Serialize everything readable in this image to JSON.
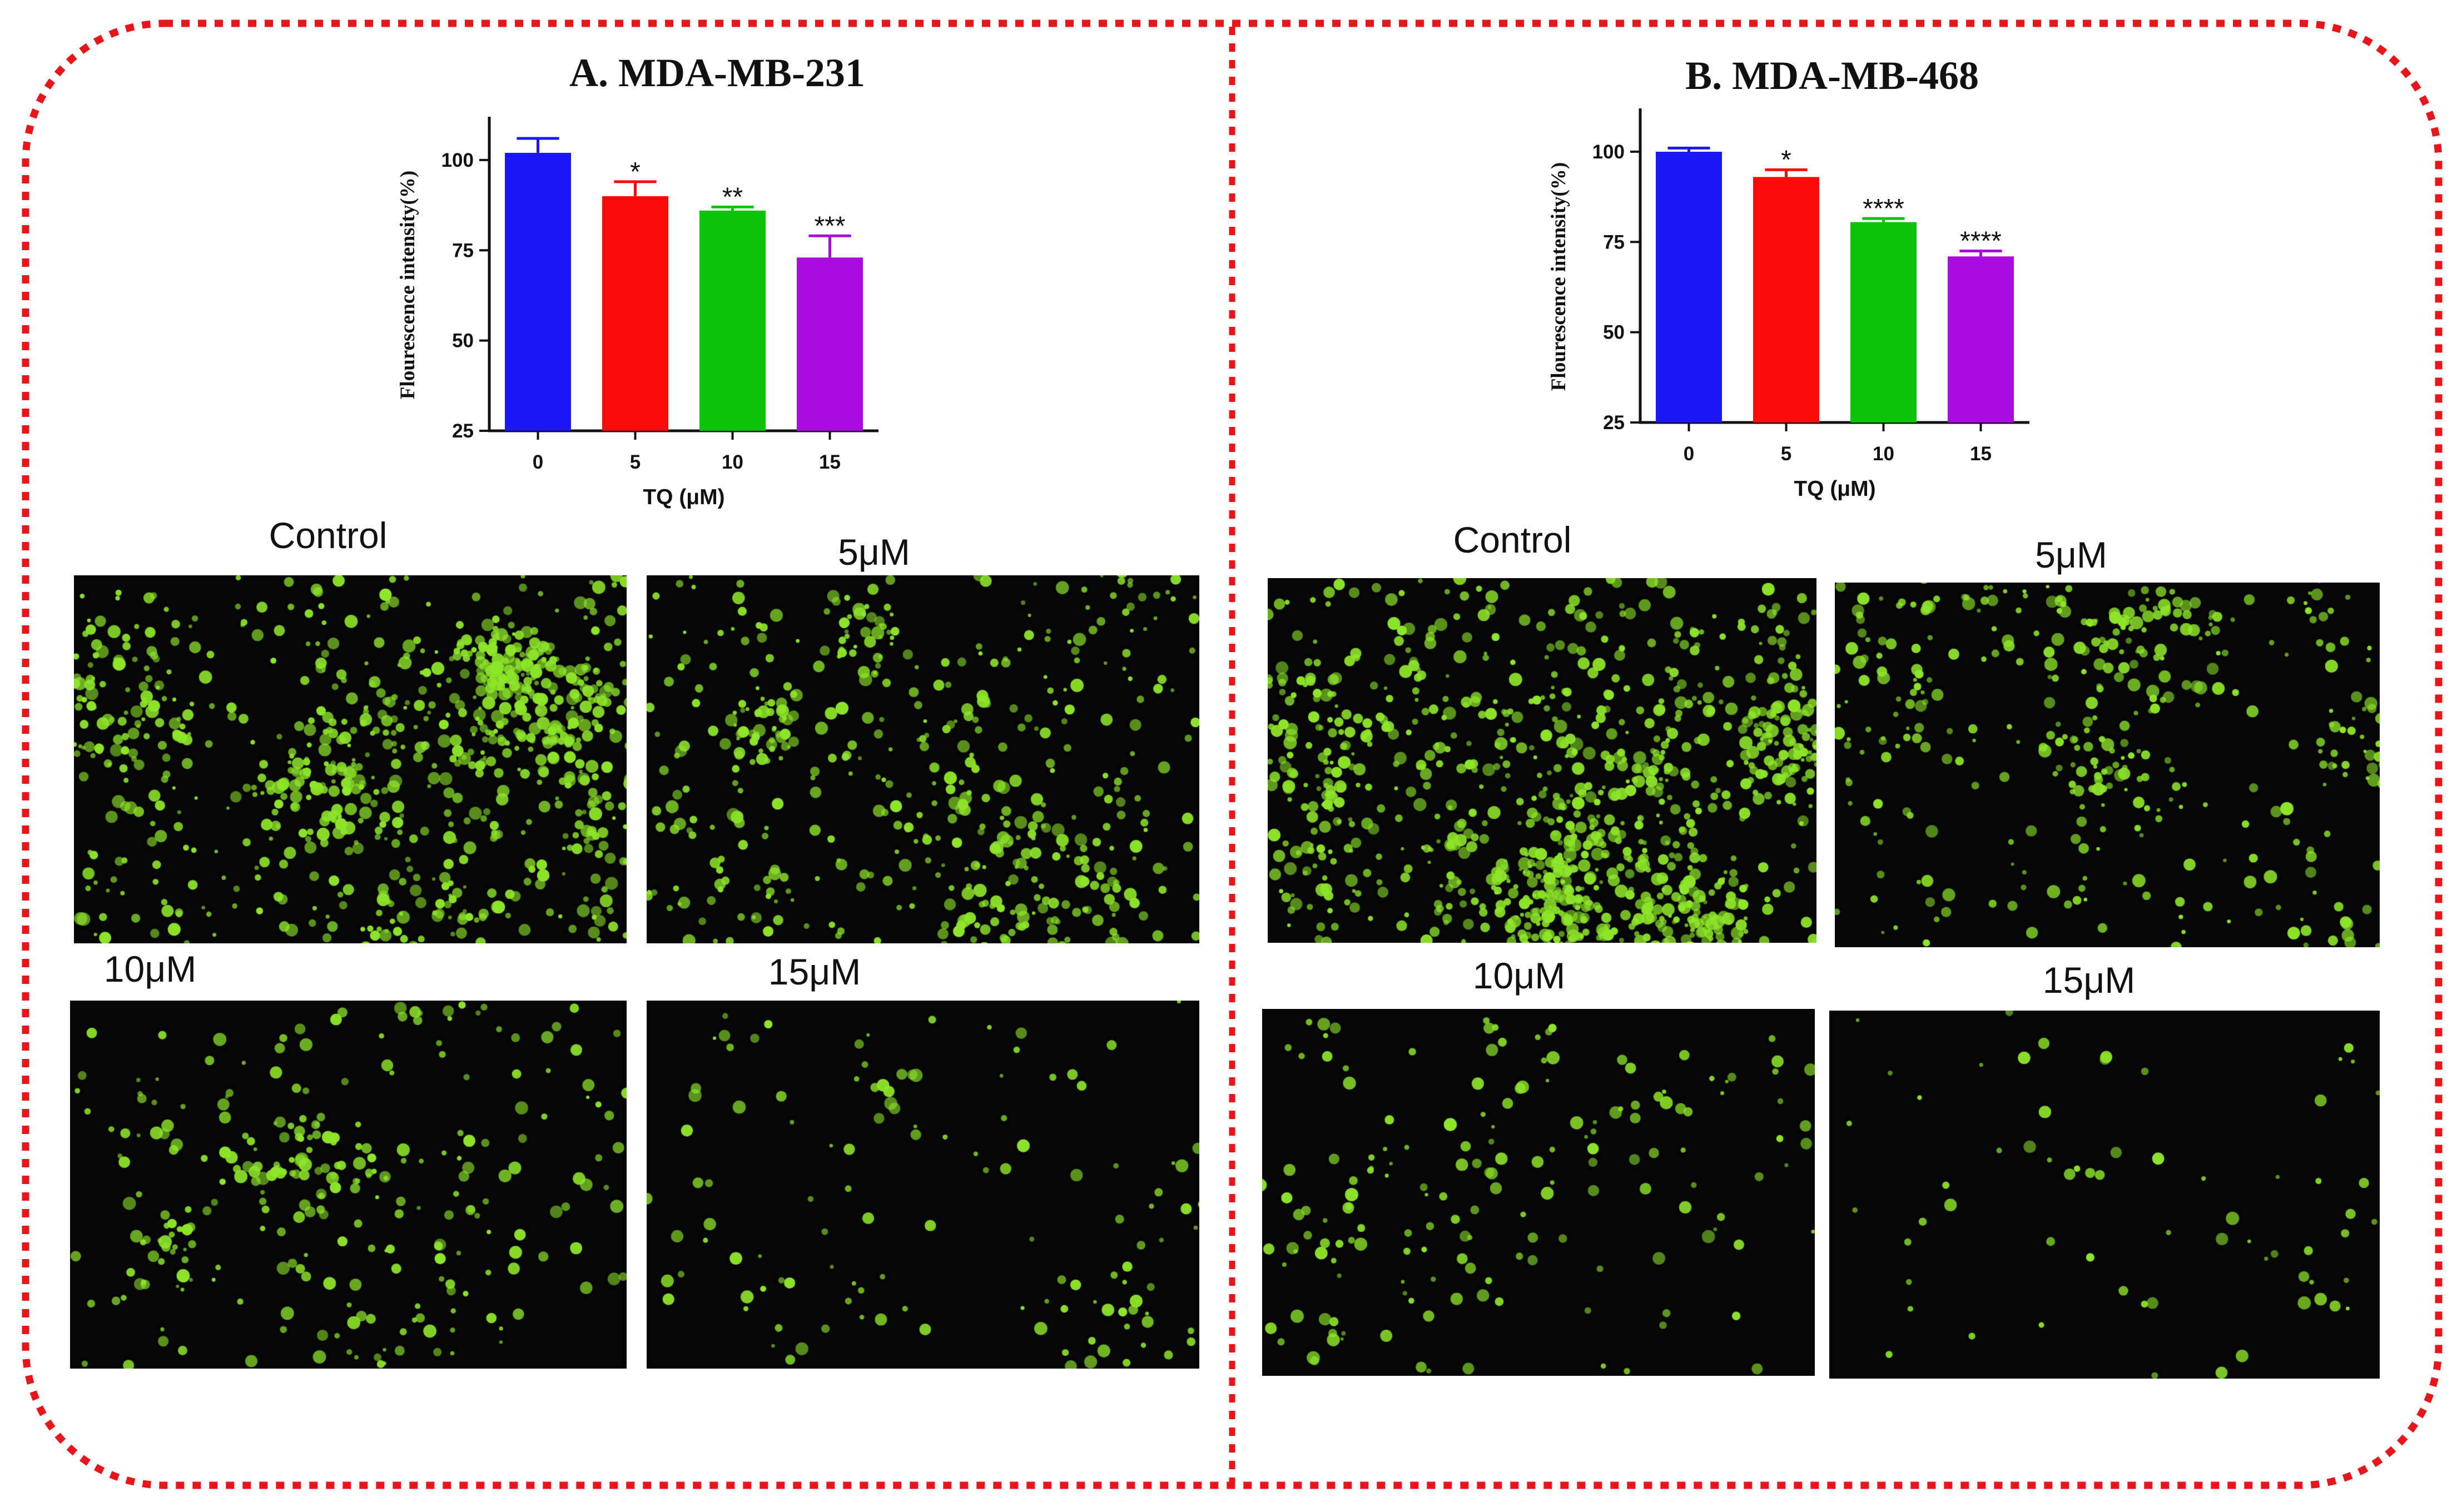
{
  "colors": {
    "border": "#e8161b",
    "bar_colors": [
      "#1b17f5",
      "#fb0a0a",
      "#0bc40b",
      "#a80ddd"
    ],
    "cell_fluorescence": "#8ee52a",
    "micrograph_background": "#050505"
  },
  "panels": [
    {
      "title": "A. MDA-MB-231",
      "micrographs": [
        {
          "label": "Control",
          "cell_count": 900
        },
        {
          "label": "5μM",
          "cell_count": 560
        },
        {
          "label": "10μM",
          "cell_count": 300
        },
        {
          "label": "15μM",
          "cell_count": 130
        }
      ]
    },
    {
      "title": "B. MDA-MB-468",
      "micrographs": [
        {
          "label": "Control",
          "cell_count": 1100
        },
        {
          "label": "5μM",
          "cell_count": 420
        },
        {
          "label": "10μM",
          "cell_count": 170
        },
        {
          "label": "15μM",
          "cell_count": 70
        }
      ]
    }
  ],
  "chart_data": [
    {
      "type": "bar",
      "panel": "A. MDA-MB-231",
      "categories": [
        "0",
        "5",
        "10",
        "15"
      ],
      "values": [
        102,
        90,
        86,
        73
      ],
      "error": [
        4,
        4,
        1,
        6
      ],
      "significance": [
        "",
        "*",
        "**",
        "***"
      ],
      "xlabel": "TQ (μM)",
      "ylabel": "Flourescence intensity(%)",
      "ylim": [
        25,
        112
      ],
      "yticks": [
        25,
        50,
        75,
        100
      ]
    },
    {
      "type": "bar",
      "panel": "B. MDA-MB-468",
      "categories": [
        "0",
        "5",
        "10",
        "15"
      ],
      "values": [
        100,
        93,
        80.5,
        71
      ],
      "error": [
        1,
        2,
        1,
        1.5
      ],
      "significance": [
        "",
        "*",
        "****",
        "****"
      ],
      "xlabel": "TQ (μM)",
      "ylabel": "Flourescence intensity(%)",
      "ylim": [
        25,
        112
      ],
      "yticks": [
        25,
        50,
        75,
        100
      ]
    }
  ]
}
